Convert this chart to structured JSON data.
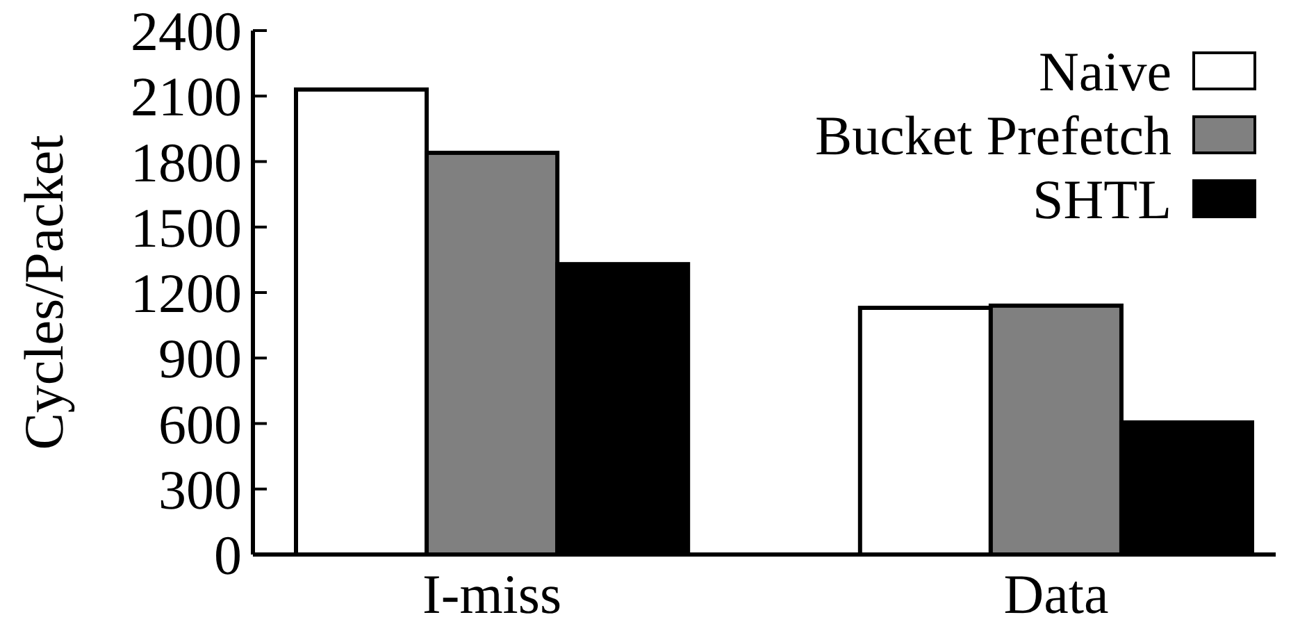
{
  "chart_data": {
    "type": "bar",
    "ylabel": "Cycles/Packet",
    "categories": [
      "I-miss",
      "Data"
    ],
    "series": [
      {
        "name": "Naive",
        "color": "#ffffff",
        "values": [
          2130,
          1130
        ]
      },
      {
        "name": "Bucket Prefetch",
        "color": "#808080",
        "values": [
          1840,
          1140
        ]
      },
      {
        "name": "SHTL",
        "color": "#000000",
        "values": [
          1330,
          605
        ]
      }
    ],
    "ylim": [
      0,
      2400
    ],
    "yticks": [
      0,
      300,
      600,
      900,
      1200,
      1500,
      1800,
      2100,
      2400
    ],
    "grid": false,
    "legend": "top right"
  }
}
